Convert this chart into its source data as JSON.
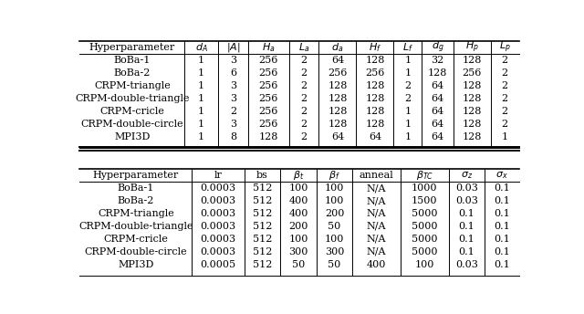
{
  "table1_header": [
    "Hyperparameter",
    "$d_A$",
    "$|A|$",
    "$H_a$",
    "$L_a$",
    "$d_a$",
    "$H_f$",
    "$L_f$",
    "$d_g$",
    "$H_p$",
    "$L_p$"
  ],
  "table1_rows": [
    [
      "BoBa-1",
      "1",
      "3",
      "256",
      "2",
      "64",
      "128",
      "1",
      "32",
      "128",
      "2"
    ],
    [
      "BoBa-2",
      "1",
      "6",
      "256",
      "2",
      "256",
      "256",
      "1",
      "128",
      "256",
      "2"
    ],
    [
      "CRPM-triangle",
      "1",
      "3",
      "256",
      "2",
      "128",
      "128",
      "2",
      "64",
      "128",
      "2"
    ],
    [
      "CRPM-double-triangle",
      "1",
      "3",
      "256",
      "2",
      "128",
      "128",
      "2",
      "64",
      "128",
      "2"
    ],
    [
      "CRPM-cricle",
      "1",
      "2",
      "256",
      "2",
      "128",
      "128",
      "1",
      "64",
      "128",
      "2"
    ],
    [
      "CRPM-double-circle",
      "1",
      "3",
      "256",
      "2",
      "128",
      "128",
      "1",
      "64",
      "128",
      "2"
    ],
    [
      "MPI3D",
      "1",
      "8",
      "128",
      "2",
      "64",
      "64",
      "1",
      "64",
      "128",
      "1"
    ]
  ],
  "table2_header": [
    "Hyperparameter",
    "lr",
    "bs",
    "$\\beta_t$",
    "$\\beta_f$",
    "anneal",
    "$\\beta_{TC}$",
    "$\\sigma_z$",
    "$\\sigma_x$"
  ],
  "table2_rows": [
    [
      "BoBa-1",
      "0.0003",
      "512",
      "100",
      "100",
      "N/A",
      "1000",
      "0.03",
      "0.1"
    ],
    [
      "BoBa-2",
      "0.0003",
      "512",
      "400",
      "100",
      "N/A",
      "1500",
      "0.03",
      "0.1"
    ],
    [
      "CRPM-triangle",
      "0.0003",
      "512",
      "400",
      "200",
      "N/A",
      "5000",
      "0.1",
      "0.1"
    ],
    [
      "CRPM-double-triangle",
      "0.0003",
      "512",
      "200",
      "50",
      "N/A",
      "5000",
      "0.1",
      "0.1"
    ],
    [
      "CRPM-cricle",
      "0.0003",
      "512",
      "100",
      "100",
      "N/A",
      "5000",
      "0.1",
      "0.1"
    ],
    [
      "CRPM-double-circle",
      "0.0003",
      "512",
      "300",
      "300",
      "N/A",
      "5000",
      "0.1",
      "0.1"
    ],
    [
      "MPI3D",
      "0.0005",
      "512",
      "50",
      "50",
      "400",
      "100",
      "0.03",
      "0.1"
    ]
  ],
  "bg_color": "#ffffff",
  "text_color": "#000000",
  "line_color": "#000000",
  "font_size": 8.0,
  "fig_width": 6.4,
  "fig_height": 3.44,
  "dpi": 100
}
